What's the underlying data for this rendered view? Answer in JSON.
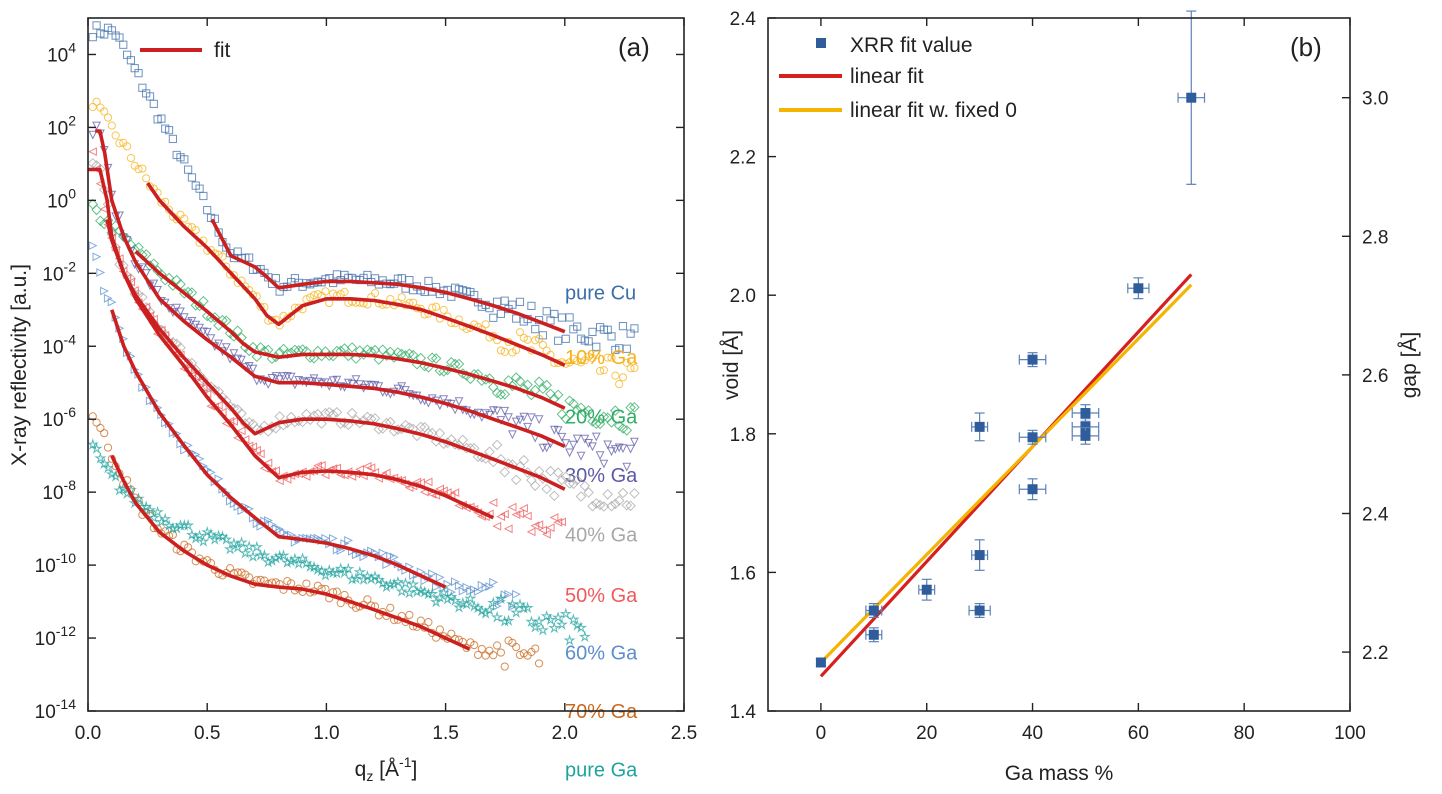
{
  "chart_data": [
    {
      "panel": "(a)",
      "type": "scatter",
      "xlabel": "q",
      "xlabel_sub": "z",
      "xlabel_unit_pre": " [Å",
      "xlabel_unit_sup": "-1",
      "xlabel_unit_post": "]",
      "ylabel": "X-ray reflectivity [a.u.]",
      "xlim": [
        0.0,
        2.5
      ],
      "ylim_log10": [
        -14,
        5
      ],
      "y_scale": "log",
      "x_ticks": [
        0.0,
        0.5,
        1.0,
        1.5,
        2.0,
        2.5
      ],
      "x_tick_labels": [
        "0.0",
        "0.5",
        "1.0",
        "1.5",
        "2.0",
        "2.5"
      ],
      "y_tick_exponents": [
        4,
        2,
        0,
        -2,
        -4,
        -6,
        -8,
        -10,
        -12,
        -14
      ],
      "y_tick_base": "10",
      "legend": {
        "label": "fit",
        "color": "#cc1f1f",
        "position": "top-left"
      },
      "series": [
        {
          "name": "pure Cu",
          "color": "#3d6ea9",
          "marker": "square",
          "curve_key": "cu",
          "label_y": 0.003
        },
        {
          "name": "10% Ga",
          "color": "#f5b31b",
          "marker": "circle",
          "curve_key": "g10",
          "label_y": 5e-05
        },
        {
          "name": "20% Ga",
          "color": "#2fae64",
          "marker": "diamond",
          "curve_key": "g20",
          "label_y": 1.2e-06
        },
        {
          "name": "30% Ga",
          "color": "#5a5aa7",
          "marker": "triangle-down",
          "curve_key": "g30",
          "label_y": 3e-08
        },
        {
          "name": "40% Ga",
          "color": "#a8a8a8",
          "marker": "diamond",
          "curve_key": "g40",
          "label_y": 7e-10
        },
        {
          "name": "50% Ga",
          "color": "#ef5a5a",
          "marker": "triangle-left",
          "curve_key": "g50",
          "label_y": 1.5e-11
        },
        {
          "name": "60% Ga",
          "color": "#5b8fcf",
          "marker": "triangle-right",
          "curve_key": "g60",
          "label_y": 4e-13
        },
        {
          "name": "70% Ga",
          "color": "#c8691f",
          "marker": "circle",
          "curve_key": "g70",
          "label_y": 1e-14
        },
        {
          "name": "pure Ga",
          "color": "#20a39e",
          "marker": "star",
          "curve_key": "ga",
          "label_y": 2.5e-16
        }
      ],
      "fit_curves": {
        "cu": {
          "x": [
            0.52,
            0.6,
            0.7,
            0.75,
            0.8,
            0.9,
            1.0,
            1.1,
            1.2,
            1.3,
            1.4,
            1.5,
            1.6,
            1.7,
            1.8,
            1.9,
            2.0
          ],
          "y": [
            0.3,
            0.03,
            0.015,
            0.008,
            0.004,
            0.005,
            0.006,
            0.006,
            0.0055,
            0.005,
            0.004,
            0.003,
            0.002,
            0.0013,
            0.0008,
            0.00045,
            0.00025
          ]
        },
        "g10": {
          "x": [
            0.25,
            0.3,
            0.4,
            0.5,
            0.6,
            0.7,
            0.75,
            0.8,
            0.9,
            1.0,
            1.1,
            1.2,
            1.3,
            1.4,
            1.5,
            1.6,
            1.7,
            1.8,
            1.9,
            2.0
          ],
          "y": [
            3,
            1,
            0.2,
            0.05,
            0.01,
            0.002,
            0.0007,
            0.0004,
            0.0013,
            0.002,
            0.002,
            0.0018,
            0.0014,
            0.001,
            0.0006,
            0.00035,
            0.0002,
            0.00011,
            6e-05,
            3e-05
          ]
        },
        "g20": {
          "x": [
            0.2,
            0.3,
            0.4,
            0.5,
            0.6,
            0.65,
            0.7,
            0.8,
            0.9,
            1.0,
            1.1,
            1.2,
            1.3,
            1.4,
            1.5,
            1.6,
            1.7,
            1.8,
            1.9,
            2.0
          ],
          "y": [
            0.04,
            0.01,
            0.003,
            0.0009,
            0.00025,
            0.00012,
            7e-05,
            5e-05,
            6e-05,
            6e-05,
            6e-05,
            5.5e-05,
            4.5e-05,
            3.5e-05,
            2.5e-05,
            1.7e-05,
            1.1e-05,
            7e-06,
            4e-06,
            2e-06
          ]
        },
        "g30": {
          "x": [
            0.03,
            0.05,
            0.07,
            0.1,
            0.15,
            0.2,
            0.3,
            0.4,
            0.5,
            0.6,
            0.7,
            0.8,
            0.9,
            1.0,
            1.1,
            1.2,
            1.3,
            1.4,
            1.5,
            1.6,
            1.7,
            1.8,
            1.9,
            2.0
          ],
          "y": [
            80,
            80,
            20,
            1,
            0.1,
            0.02,
            0.002,
            0.0005,
            0.00015,
            5e-05,
            1.5e-05,
            1e-05,
            1e-05,
            9e-06,
            8e-06,
            7e-06,
            5.5e-06,
            4e-06,
            2.7e-06,
            1.7e-06,
            1e-06,
            6e-07,
            3.5e-07,
            1.8e-07
          ]
        },
        "g40": {
          "x": [
            0.0,
            0.05,
            0.08,
            0.1,
            0.15,
            0.2,
            0.3,
            0.4,
            0.5,
            0.6,
            0.65,
            0.7,
            0.8,
            0.9,
            1.0,
            1.1,
            1.2,
            1.3,
            1.4,
            1.5,
            1.6,
            1.7,
            1.8,
            1.9,
            2.0
          ],
          "y": [
            7,
            7,
            1,
            0.1,
            0.01,
            0.0025,
            0.0003,
            5e-05,
            1e-05,
            2e-06,
            8e-07,
            4e-07,
            8e-07,
            1e-06,
            1e-06,
            9e-07,
            7.5e-07,
            5.5e-07,
            3.8e-07,
            2.4e-07,
            1.4e-07,
            8e-08,
            4.5e-08,
            2.5e-08,
            1.2e-08
          ]
        },
        "g50": {
          "x": [
            0.08,
            0.1,
            0.15,
            0.2,
            0.3,
            0.4,
            0.5,
            0.6,
            0.7,
            0.8,
            0.9,
            1.0,
            1.1,
            1.2,
            1.3,
            1.4,
            1.5,
            1.6,
            1.7
          ],
          "y": [
            0.3,
            0.08,
            0.01,
            0.002,
            0.0002,
            3e-05,
            4e-06,
            7e-07,
            1e-07,
            2.5e-08,
            3.5e-08,
            3.8e-08,
            3.5e-08,
            3e-08,
            2.2e-08,
            1.4e-08,
            8e-09,
            4e-09,
            2e-09
          ]
        },
        "g60": {
          "x": [
            0.1,
            0.15,
            0.2,
            0.3,
            0.4,
            0.5,
            0.6,
            0.7,
            0.8,
            0.9,
            1.0,
            1.1,
            1.2,
            1.3,
            1.4,
            1.5
          ],
          "y": [
            0.001,
            0.0001,
            2e-05,
            1.5e-06,
            2e-07,
            3e-08,
            7e-09,
            2e-09,
            6e-10,
            5e-10,
            4e-10,
            2.8e-10,
            1.8e-10,
            1e-10,
            5e-11,
            2.5e-11
          ]
        },
        "g70": {
          "x": [
            0.1,
            0.15,
            0.2,
            0.3,
            0.4,
            0.5,
            0.6,
            0.7,
            0.8,
            0.9,
            1.0,
            1.1,
            1.2,
            1.3,
            1.4,
            1.5,
            1.6
          ],
          "y": [
            1e-07,
            2e-08,
            5e-09,
            8e-10,
            2.5e-10,
            1e-10,
            5e-11,
            3e-11,
            2.5e-11,
            2.2e-11,
            1.6e-11,
            1e-11,
            6e-12,
            3.5e-12,
            2e-12,
            1e-12,
            5e-13
          ]
        }
      }
    },
    {
      "panel": "(b)",
      "type": "scatter",
      "xlabel": "Ga mass %",
      "ylabel": "void [Å]",
      "ylabel_right": "gap [Å]",
      "xlim": [
        -10,
        100
      ],
      "ylim": [
        1.4,
        2.4
      ],
      "ylim_right": [
        2.115,
        3.115
      ],
      "x_ticks": [
        0,
        20,
        40,
        60,
        80,
        100
      ],
      "y_ticks": [
        1.4,
        1.6,
        1.8,
        2.0,
        2.2,
        2.4
      ],
      "y_ticks_right": [
        2.2,
        2.4,
        2.6,
        2.8,
        3.0
      ],
      "legend": {
        "position": "top-left",
        "entries": [
          {
            "label": "XRR fit value",
            "kind": "marker",
            "color": "#2f5d9b"
          },
          {
            "label": "linear fit",
            "kind": "line",
            "color": "#d61f1f"
          },
          {
            "label": "linear fit w. fixed 0",
            "kind": "line",
            "color": "#f4b400"
          }
        ]
      },
      "points": [
        {
          "x": 0,
          "y": 1.47,
          "xerr": 0,
          "yerr": 0.005
        },
        {
          "x": 10,
          "y": 1.545,
          "xerr": 1.5,
          "yerr": 0.01
        },
        {
          "x": 10,
          "y": 1.51,
          "xerr": 1.5,
          "yerr": 0.01
        },
        {
          "x": 20,
          "y": 1.575,
          "xerr": 1.5,
          "yerr": 0.015
        },
        {
          "x": 30,
          "y": 1.81,
          "xerr": 1.5,
          "yerr": 0.02
        },
        {
          "x": 30,
          "y": 1.625,
          "xerr": 1.5,
          "yerr": 0.022
        },
        {
          "x": 30,
          "y": 1.545,
          "xerr": 2.0,
          "yerr": 0.01
        },
        {
          "x": 40,
          "y": 1.907,
          "xerr": 2.5,
          "yerr": 0.01
        },
        {
          "x": 40,
          "y": 1.795,
          "xerr": 2.5,
          "yerr": 0.01
        },
        {
          "x": 40,
          "y": 1.72,
          "xerr": 2.5,
          "yerr": 0.015
        },
        {
          "x": 50,
          "y": 1.83,
          "xerr": 2.5,
          "yerr": 0.012
        },
        {
          "x": 50,
          "y": 1.81,
          "xerr": 2.5,
          "yerr": 0.012
        },
        {
          "x": 50,
          "y": 1.797,
          "xerr": 2.5,
          "yerr": 0.012
        },
        {
          "x": 60,
          "y": 2.01,
          "xerr": 2.0,
          "yerr": 0.015
        },
        {
          "x": 70,
          "y": 2.285,
          "xerr": 2.5,
          "yerr": 0.125
        }
      ],
      "lines": [
        {
          "name": "linear fit",
          "color": "#d61f1f",
          "x": [
            0,
            70
          ],
          "y": [
            1.45,
            2.03
          ]
        },
        {
          "name": "linear fit w. fixed 0",
          "color": "#f4b400",
          "x": [
            0,
            70
          ],
          "y": [
            1.47,
            2.015
          ]
        }
      ]
    }
  ]
}
